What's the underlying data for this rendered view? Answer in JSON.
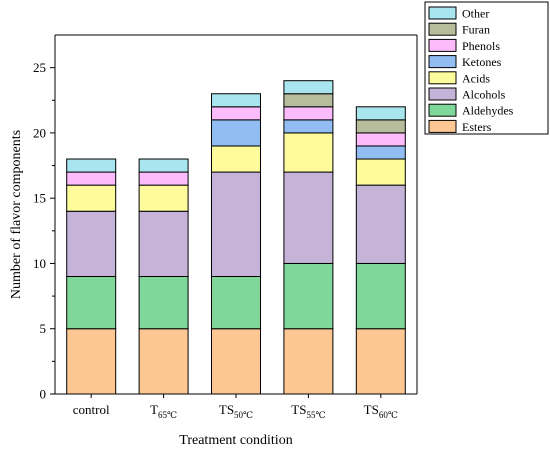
{
  "chart_data": {
    "type": "bar",
    "stacked": true,
    "xlabel": "Treatment condition",
    "ylabel": "Number of flavor components",
    "ylim": [
      0,
      27.5
    ],
    "yticks": [
      0,
      5,
      10,
      15,
      20,
      25
    ],
    "grid": false,
    "legend_position": "top-right",
    "categories": [
      {
        "base": "control",
        "sub": ""
      },
      {
        "base": "T",
        "sub": "65℃"
      },
      {
        "base": "TS",
        "sub": "50℃"
      },
      {
        "base": "TS",
        "sub": "55℃"
      },
      {
        "base": "TS",
        "sub": "60℃"
      }
    ],
    "series": [
      {
        "name": "Esters",
        "color": "#FCC793",
        "values": [
          5,
          5,
          5,
          5,
          5
        ]
      },
      {
        "name": "Aldehydes",
        "color": "#7FD79A",
        "values": [
          4,
          4,
          4,
          5,
          5
        ]
      },
      {
        "name": "Alcohols",
        "color": "#C6B3D8",
        "values": [
          5,
          5,
          8,
          7,
          6
        ]
      },
      {
        "name": "Acids",
        "color": "#FDFB9B",
        "values": [
          2,
          2,
          2,
          3,
          2
        ]
      },
      {
        "name": "Ketones",
        "color": "#92BDF2",
        "values": [
          0,
          0,
          2,
          1,
          1
        ]
      },
      {
        "name": "Phenols",
        "color": "#FCBCFC",
        "values": [
          1,
          1,
          1,
          1,
          1
        ]
      },
      {
        "name": "Furan",
        "color": "#B7BC9B",
        "values": [
          0,
          0,
          0,
          1,
          1
        ]
      },
      {
        "name": "Other",
        "color": "#A9E5EE",
        "values": [
          1,
          1,
          1,
          1,
          1
        ]
      }
    ]
  }
}
